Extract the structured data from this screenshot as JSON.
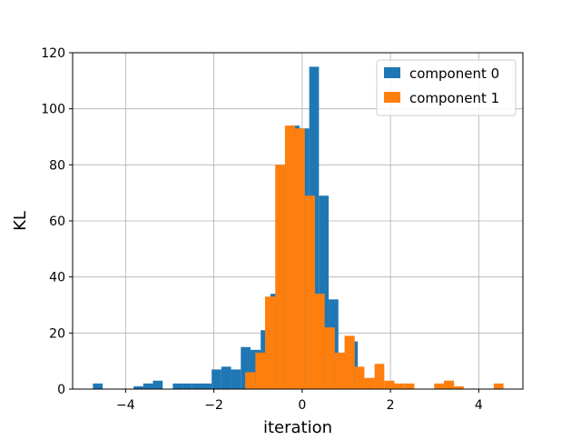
{
  "chart_data": {
    "type": "bar",
    "title": "",
    "xlabel": "iteration",
    "ylabel": "KL",
    "xlim": [
      -5.2,
      5.0
    ],
    "ylim": [
      0,
      120
    ],
    "xticks": [
      -4,
      -2,
      0,
      2,
      4
    ],
    "xtick_labels": [
      "−4",
      "−2",
      "0",
      "2",
      "4"
    ],
    "yticks": [
      0,
      20,
      40,
      60,
      80,
      100,
      120
    ],
    "ytick_labels": [
      "0",
      "20",
      "40",
      "60",
      "80",
      "100",
      "120"
    ],
    "grid": true,
    "legend_placement": "top-right",
    "series": [
      {
        "name": "component 0",
        "color": "#1f77b4",
        "bins": [
          {
            "x0": -4.74,
            "x1": -4.52,
            "count": 2
          },
          {
            "x0": -3.82,
            "x1": -3.6,
            "count": 1
          },
          {
            "x0": -3.6,
            "x1": -3.38,
            "count": 2
          },
          {
            "x0": -3.38,
            "x1": -3.16,
            "count": 3
          },
          {
            "x0": -2.93,
            "x1": -2.71,
            "count": 2
          },
          {
            "x0": -2.71,
            "x1": -2.49,
            "count": 2
          },
          {
            "x0": -2.49,
            "x1": -2.27,
            "count": 2
          },
          {
            "x0": -2.27,
            "x1": -2.05,
            "count": 2
          },
          {
            "x0": -2.05,
            "x1": -1.83,
            "count": 7
          },
          {
            "x0": -1.83,
            "x1": -1.61,
            "count": 8
          },
          {
            "x0": -1.61,
            "x1": -1.39,
            "count": 7
          },
          {
            "x0": -1.39,
            "x1": -1.17,
            "count": 15
          },
          {
            "x0": -1.17,
            "x1": -0.94,
            "count": 14
          },
          {
            "x0": -0.94,
            "x1": -0.72,
            "count": 21
          },
          {
            "x0": -0.72,
            "x1": -0.5,
            "count": 34
          },
          {
            "x0": -0.5,
            "x1": -0.28,
            "count": 79
          },
          {
            "x0": -0.28,
            "x1": -0.06,
            "count": 94
          },
          {
            "x0": -0.06,
            "x1": 0.16,
            "count": 93
          },
          {
            "x0": 0.16,
            "x1": 0.38,
            "count": 115
          },
          {
            "x0": 0.38,
            "x1": 0.6,
            "count": 69
          },
          {
            "x0": 0.6,
            "x1": 0.82,
            "count": 32
          },
          {
            "x0": 0.82,
            "x1": 1.04,
            "count": 13
          },
          {
            "x0": 1.04,
            "x1": 1.26,
            "count": 17
          }
        ]
      },
      {
        "name": "component 1",
        "color": "#ff7f0e",
        "bins": [
          {
            "x0": -1.29,
            "x1": -1.06,
            "count": 6
          },
          {
            "x0": -1.06,
            "x1": -0.84,
            "count": 13
          },
          {
            "x0": -0.84,
            "x1": -0.61,
            "count": 33
          },
          {
            "x0": -0.61,
            "x1": -0.39,
            "count": 80
          },
          {
            "x0": -0.39,
            "x1": -0.16,
            "count": 94
          },
          {
            "x0": -0.16,
            "x1": 0.06,
            "count": 93
          },
          {
            "x0": 0.06,
            "x1": 0.29,
            "count": 69
          },
          {
            "x0": 0.29,
            "x1": 0.51,
            "count": 34
          },
          {
            "x0": 0.51,
            "x1": 0.74,
            "count": 22
          },
          {
            "x0": 0.74,
            "x1": 0.96,
            "count": 13
          },
          {
            "x0": 0.96,
            "x1": 1.19,
            "count": 19
          },
          {
            "x0": 1.19,
            "x1": 1.41,
            "count": 8
          },
          {
            "x0": 1.41,
            "x1": 1.64,
            "count": 4
          },
          {
            "x0": 1.64,
            "x1": 1.86,
            "count": 9
          },
          {
            "x0": 1.86,
            "x1": 2.09,
            "count": 3
          },
          {
            "x0": 2.09,
            "x1": 2.31,
            "count": 2
          },
          {
            "x0": 2.31,
            "x1": 2.54,
            "count": 2
          },
          {
            "x0": 2.99,
            "x1": 3.21,
            "count": 2
          },
          {
            "x0": 3.21,
            "x1": 3.44,
            "count": 3
          },
          {
            "x0": 3.44,
            "x1": 3.66,
            "count": 1
          },
          {
            "x0": 4.34,
            "x1": 4.56,
            "count": 2
          }
        ]
      }
    ]
  }
}
